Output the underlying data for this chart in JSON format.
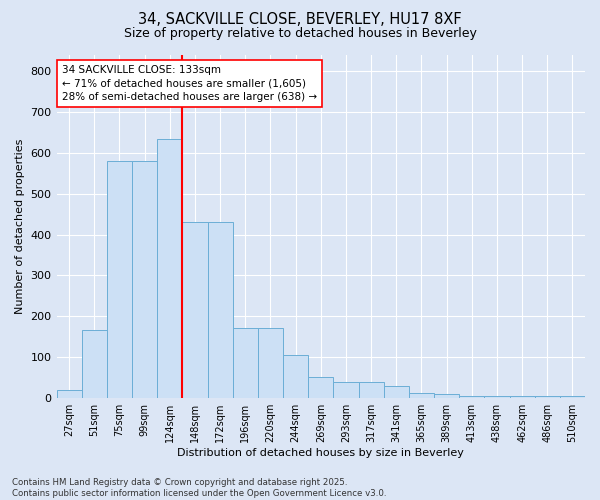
{
  "title1": "34, SACKVILLE CLOSE, BEVERLEY, HU17 8XF",
  "title2": "Size of property relative to detached houses in Beverley",
  "xlabel": "Distribution of detached houses by size in Beverley",
  "ylabel": "Number of detached properties",
  "categories": [
    "27sqm",
    "51sqm",
    "75sqm",
    "99sqm",
    "124sqm",
    "148sqm",
    "172sqm",
    "196sqm",
    "220sqm",
    "244sqm",
    "269sqm",
    "293sqm",
    "317sqm",
    "341sqm",
    "365sqm",
    "389sqm",
    "413sqm",
    "438sqm",
    "462sqm",
    "486sqm",
    "510sqm"
  ],
  "values": [
    20,
    165,
    580,
    580,
    635,
    430,
    430,
    170,
    170,
    105,
    50,
    38,
    38,
    28,
    12,
    8,
    5,
    5,
    3,
    3,
    5
  ],
  "bar_color": "#cce0f5",
  "bar_edge_color": "#6baed6",
  "vline_x": 4.5,
  "vline_color": "red",
  "annotation_text": "34 SACKVILLE CLOSE: 133sqm\n← 71% of detached houses are smaller (1,605)\n28% of semi-detached houses are larger (638) →",
  "annotation_box_color": "white",
  "annotation_box_edge": "red",
  "ylim": [
    0,
    840
  ],
  "yticks": [
    0,
    100,
    200,
    300,
    400,
    500,
    600,
    700,
    800
  ],
  "background_color": "#dce6f5",
  "grid_color": "white",
  "footer1": "Contains HM Land Registry data © Crown copyright and database right 2025.",
  "footer2": "Contains public sector information licensed under the Open Government Licence v3.0."
}
